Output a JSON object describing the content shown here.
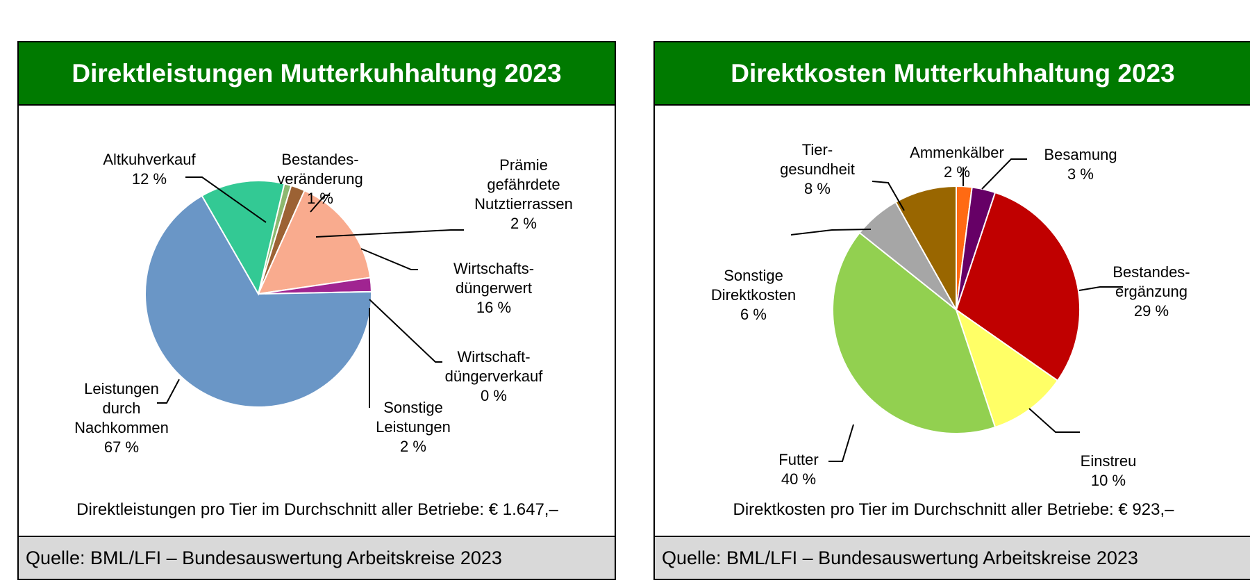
{
  "chart_data": [
    {
      "type": "pie",
      "title": "Direktleistungen Mutterkuhhaltung 2023",
      "slices": [
        {
          "label": "Bestandes-\nveränderung\n1 %",
          "value": 1,
          "color": "#8DB870"
        },
        {
          "label": "Prämie\ngefährdete\nNutztierrassen\n2 %",
          "value": 2,
          "color": "#9C6234"
        },
        {
          "label": "Wirtschafts-\ndüngerwert\n16 %",
          "value": 16,
          "color": "#F9AB8E"
        },
        {
          "label": "Wirtschaft-\ndüngerverkauf\n0 %",
          "value": 0,
          "color": "#FFFFFF"
        },
        {
          "label": "Sonstige\nLeistungen\n2 %",
          "value": 2,
          "color": "#A02491"
        },
        {
          "label": "Leistungen\ndurch\nNachkommen\n67 %",
          "value": 67,
          "color": "#6A96C6"
        },
        {
          "label": "Altkuhverkauf\n12 %",
          "value": 12,
          "color": "#33C994"
        }
      ],
      "summary": "Direktleistungen pro Tier im Durchschnitt aller Betriebe: € 1.647,–",
      "source": "Quelle: BML/LFI – Bundesauswertung Arbeitskreise 2023"
    },
    {
      "type": "pie",
      "title": "Direktkosten Mutterkuhhaltung 2023",
      "slices": [
        {
          "label": "Ammenkälber\n2 %",
          "value": 2,
          "color": "#FF6A13"
        },
        {
          "label": "Besamung\n3 %",
          "value": 3,
          "color": "#660066"
        },
        {
          "label": "Bestandes-\nergänzung\n29 %",
          "value": 29,
          "color": "#C00000"
        },
        {
          "label": "Einstreu\n10 %",
          "value": 10,
          "color": "#FFFF66"
        },
        {
          "label": "Futter\n40 %",
          "value": 40,
          "color": "#92D050"
        },
        {
          "label": "Sonstige\nDirektkosten\n6 %",
          "value": 6,
          "color": "#A6A6A6"
        },
        {
          "label": "Tier-\ngesundheit\n8 %",
          "value": 8,
          "color": "#996600"
        }
      ],
      "summary": "Direktkosten pro Tier im Durchschnitt aller Betriebe: € 923,–",
      "source": "Quelle: BML/LFI – Bundesauswertung Arbeitskreise 2023"
    }
  ]
}
